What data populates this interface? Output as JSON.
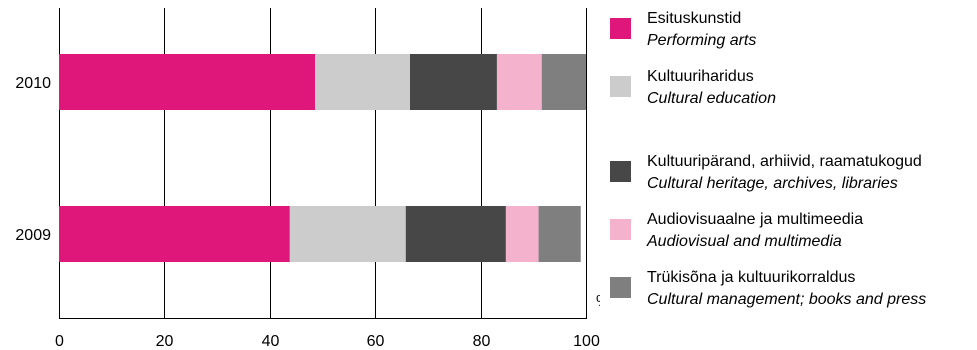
{
  "chart_data": {
    "type": "bar",
    "orientation": "horizontal",
    "stacked": true,
    "categories": [
      "2010",
      "2009"
    ],
    "xlim": [
      0,
      100
    ],
    "xticks": [
      "0",
      "20",
      "40",
      "60",
      "80",
      "100"
    ],
    "xunit": "%",
    "grid": true,
    "legend_position": "right",
    "series": [
      {
        "name_et": "Esituskunstid",
        "name_en": "Performing arts",
        "color": "#e0177a",
        "values": [
          48.6,
          43.8
        ]
      },
      {
        "name_et": "Kultuuriharidus",
        "name_en": "Cultural education",
        "color": "#cccccc",
        "values": [
          18.0,
          22.0
        ]
      },
      {
        "name_et": "Kultuuripärand, arhiivid, raamatukogud",
        "name_en": "Cultural heritage, archives, libraries",
        "color": "#474747",
        "values": [
          16.5,
          19.0
        ]
      },
      {
        "name_et": "Audiovisuaalne ja multimeedia",
        "name_en": "Audiovisual and multimedia",
        "color": "#f4b2cc",
        "values": [
          8.5,
          6.2
        ]
      },
      {
        "name_et": "Trükisõna ja kultuurikorraldus",
        "name_en": "Cultural management; books and press",
        "color": "#7f7f7f",
        "values": [
          8.4,
          8.0
        ]
      }
    ]
  }
}
